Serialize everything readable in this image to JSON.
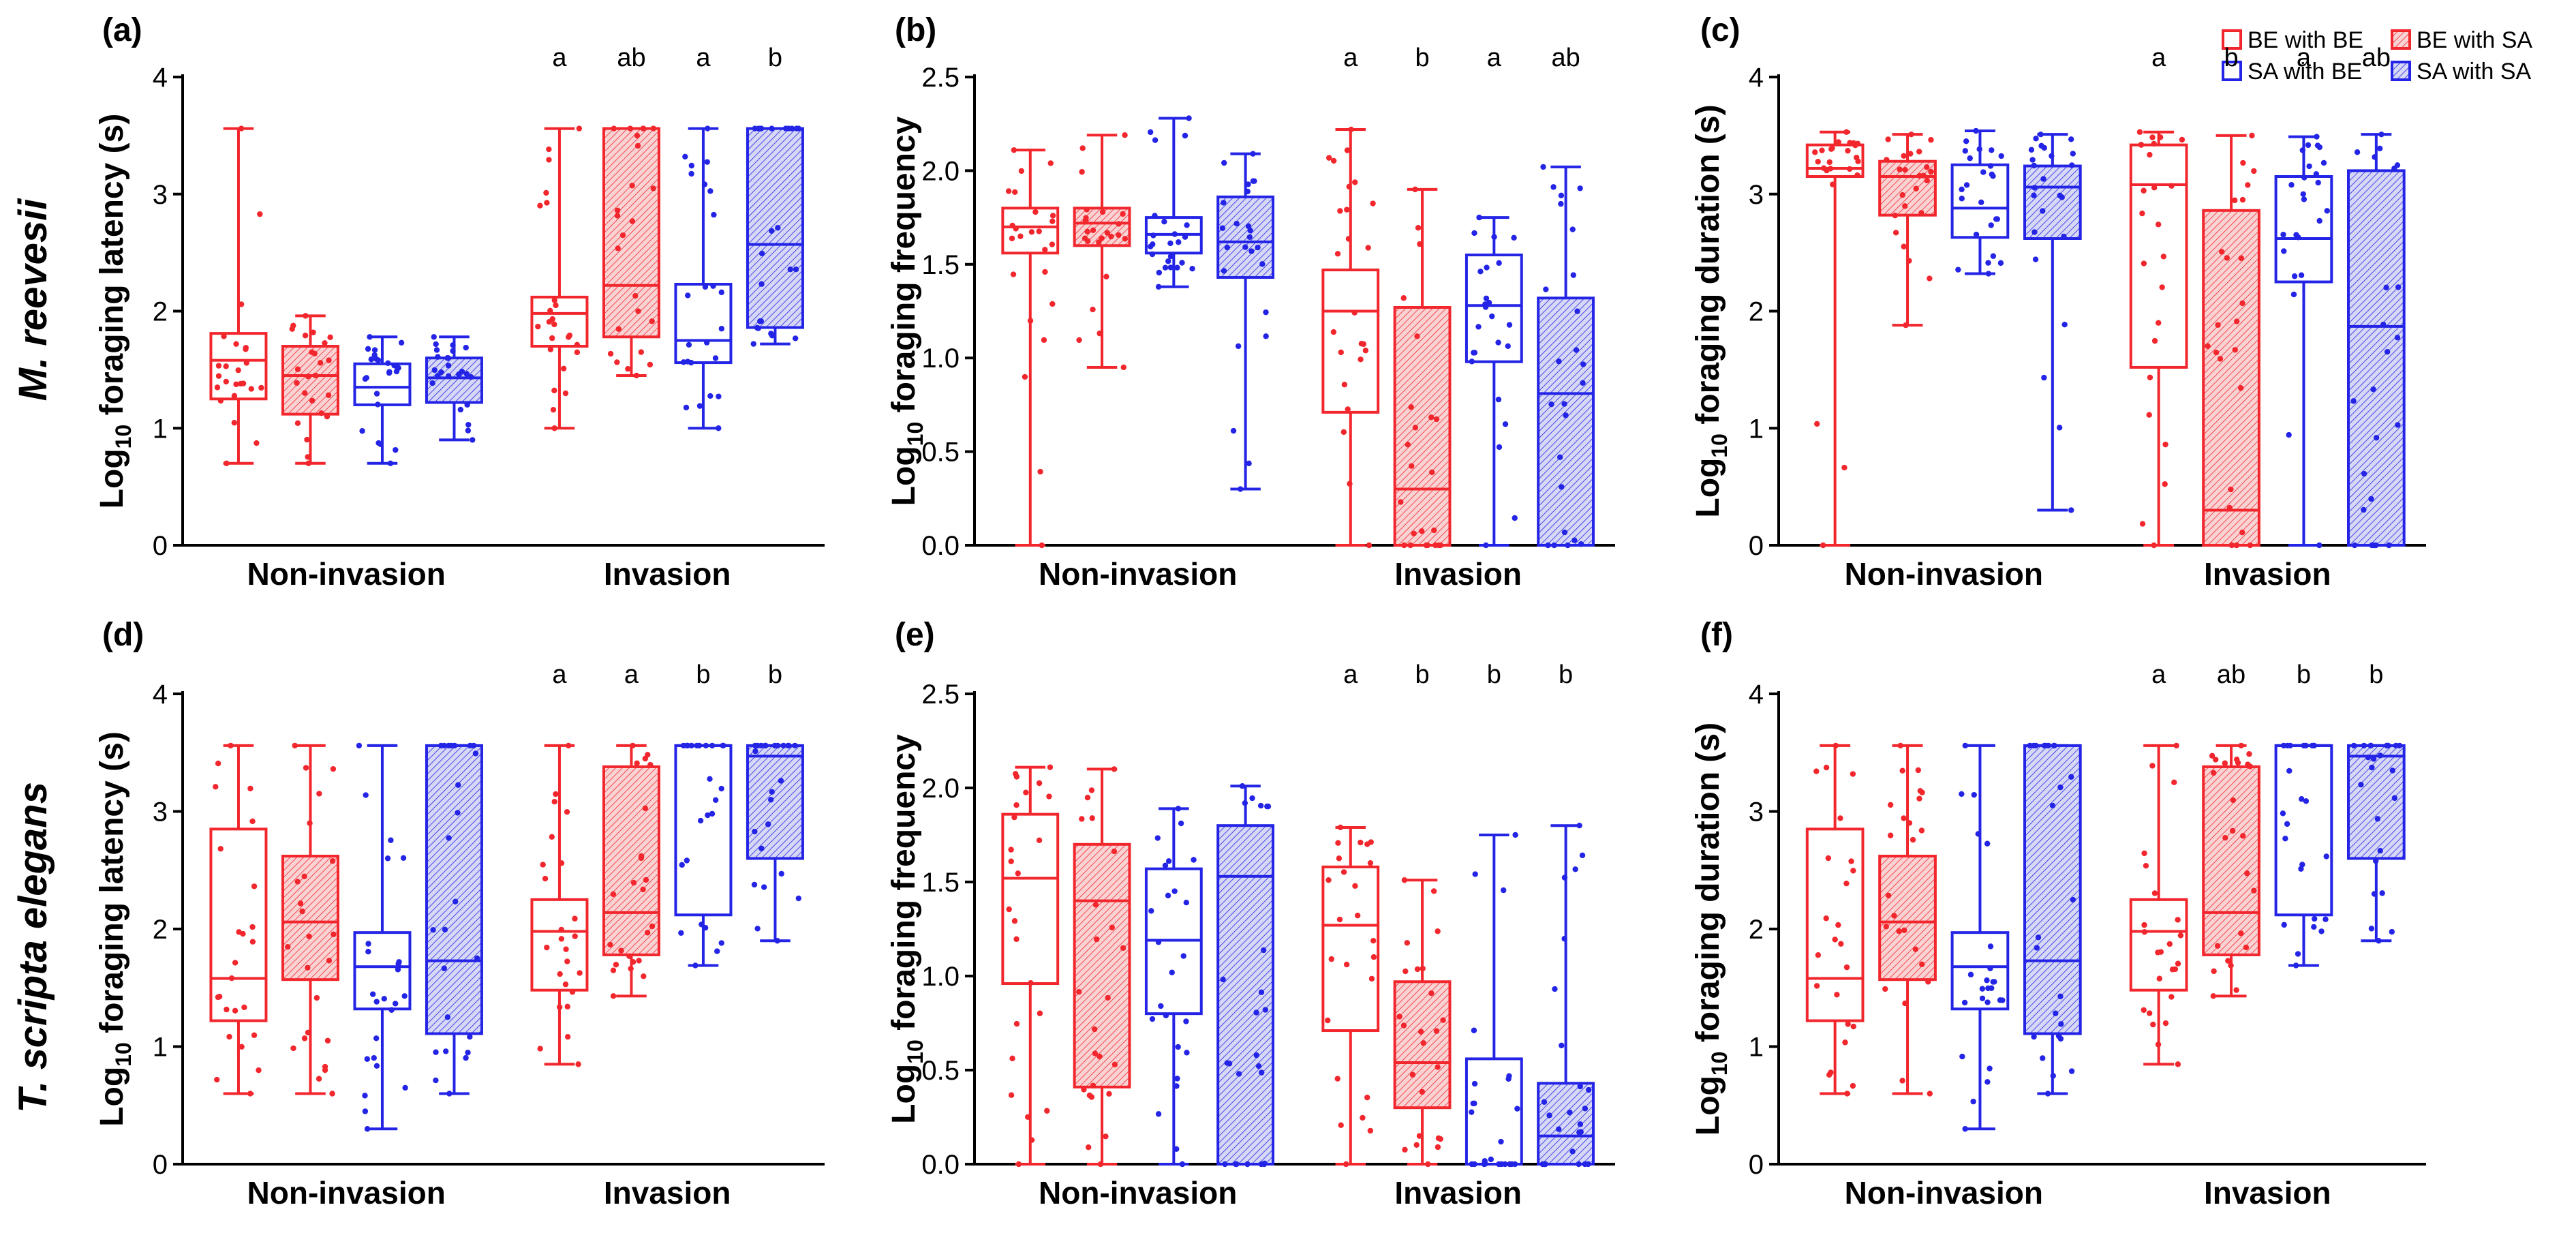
{
  "colors": {
    "red": "#f2262d",
    "blue": "#2424e6",
    "red_fill": "#f6b9bb",
    "blue_fill": "#bcbff0"
  },
  "legend": {
    "be_be": "BE with BE",
    "be_sa": "BE with SA",
    "sa_be": "SA with BE",
    "sa_sa": "SA with SA"
  },
  "rows": [
    {
      "label": "M. reevesii"
    },
    {
      "label": "T. scripta elegans"
    }
  ],
  "chart_data": [
    {
      "panel": "(a)",
      "type": "box",
      "title": "",
      "ylabel_pre": "Log",
      "ylabel_sub": "10",
      "ylabel_post": " foraging latency (s)",
      "ylim": [
        0,
        4
      ],
      "yticks": [
        "0",
        "1",
        "2",
        "3",
        "4"
      ],
      "ytick_values": [
        0,
        1,
        2,
        3,
        4
      ],
      "categories": [
        "Non-invasion",
        "Invasion"
      ],
      "series": [
        "BE with BE",
        "BE with SA",
        "SA with BE",
        "SA with SA"
      ],
      "groups": [
        {
          "category": "Non-invasion",
          "boxes": [
            {
              "series": "BE with BE",
              "min": 0.7,
              "q1": 1.25,
              "median": 1.58,
              "q3": 1.81,
              "max": 3.56,
              "letter": ""
            },
            {
              "series": "BE with SA",
              "min": 0.7,
              "q1": 1.12,
              "median": 1.45,
              "q3": 1.7,
              "max": 1.96,
              "letter": ""
            },
            {
              "series": "SA with BE",
              "min": 0.7,
              "q1": 1.2,
              "median": 1.35,
              "q3": 1.55,
              "max": 1.78,
              "letter": ""
            },
            {
              "series": "SA with SA",
              "min": 0.9,
              "q1": 1.22,
              "median": 1.43,
              "q3": 1.6,
              "max": 1.78,
              "letter": ""
            }
          ]
        },
        {
          "category": "Invasion",
          "boxes": [
            {
              "series": "BE with BE",
              "min": 1.0,
              "q1": 1.7,
              "median": 1.98,
              "q3": 2.12,
              "max": 3.56,
              "letter": "a"
            },
            {
              "series": "BE with SA",
              "min": 1.45,
              "q1": 1.78,
              "median": 2.22,
              "q3": 3.56,
              "max": 3.56,
              "letter": "ab"
            },
            {
              "series": "SA with BE",
              "min": 1.0,
              "q1": 1.56,
              "median": 1.75,
              "q3": 2.23,
              "max": 3.56,
              "letter": "a"
            },
            {
              "series": "SA with SA",
              "min": 1.72,
              "q1": 1.86,
              "median": 2.57,
              "q3": 3.56,
              "max": 3.56,
              "letter": "b"
            }
          ]
        }
      ]
    },
    {
      "panel": "(b)",
      "type": "box",
      "title": "",
      "ylabel_pre": "Log",
      "ylabel_sub": "10",
      "ylabel_post": " foraging frequency",
      "ylim": [
        0,
        2.5
      ],
      "yticks": [
        "0.0",
        "0.5",
        "1.0",
        "1.5",
        "2.0",
        "2.5"
      ],
      "ytick_values": [
        0,
        0.5,
        1.0,
        1.5,
        2.0,
        2.5
      ],
      "categories": [
        "Non-invasion",
        "Invasion"
      ],
      "series": [
        "BE with BE",
        "BE with SA",
        "SA with BE",
        "SA with SA"
      ],
      "groups": [
        {
          "category": "Non-invasion",
          "boxes": [
            {
              "series": "BE with BE",
              "min": 0.0,
              "q1": 1.56,
              "median": 1.7,
              "q3": 1.8,
              "max": 2.11,
              "letter": ""
            },
            {
              "series": "BE with SA",
              "min": 0.95,
              "q1": 1.6,
              "median": 1.72,
              "q3": 1.8,
              "max": 2.19,
              "letter": ""
            },
            {
              "series": "SA with BE",
              "min": 1.38,
              "q1": 1.56,
              "median": 1.66,
              "q3": 1.75,
              "max": 2.28,
              "letter": ""
            },
            {
              "series": "SA with SA",
              "min": 0.3,
              "q1": 1.43,
              "median": 1.62,
              "q3": 1.86,
              "max": 2.09,
              "letter": ""
            }
          ]
        },
        {
          "category": "Invasion",
          "boxes": [
            {
              "series": "BE with BE",
              "min": 0.0,
              "q1": 0.71,
              "median": 1.25,
              "q3": 1.47,
              "max": 2.22,
              "letter": "a"
            },
            {
              "series": "BE with SA",
              "min": 0.0,
              "q1": 0.0,
              "median": 0.3,
              "q3": 1.27,
              "max": 1.9,
              "letter": "b"
            },
            {
              "series": "SA with BE",
              "min": 0.0,
              "q1": 0.98,
              "median": 1.28,
              "q3": 1.55,
              "max": 1.75,
              "letter": "a"
            },
            {
              "series": "SA with SA",
              "min": 0.0,
              "q1": 0.0,
              "median": 0.81,
              "q3": 1.32,
              "max": 2.02,
              "letter": "ab"
            }
          ]
        }
      ]
    },
    {
      "panel": "(c)",
      "type": "box",
      "title": "",
      "ylabel_pre": "Log",
      "ylabel_sub": "10",
      "ylabel_post": " foraging duration (s)",
      "ylim": [
        0,
        4
      ],
      "yticks": [
        "0",
        "1",
        "2",
        "3",
        "4"
      ],
      "ytick_values": [
        0,
        1,
        2,
        3,
        4
      ],
      "categories": [
        "Non-invasion",
        "Invasion"
      ],
      "series": [
        "BE with BE",
        "BE with SA",
        "SA with BE",
        "SA with SA"
      ],
      "groups": [
        {
          "category": "Non-invasion",
          "boxes": [
            {
              "series": "BE with BE",
              "min": 0.0,
              "q1": 3.15,
              "median": 3.22,
              "q3": 3.42,
              "max": 3.53,
              "letter": ""
            },
            {
              "series": "BE with SA",
              "min": 1.88,
              "q1": 2.82,
              "median": 3.15,
              "q3": 3.28,
              "max": 3.51,
              "letter": ""
            },
            {
              "series": "SA with BE",
              "min": 2.32,
              "q1": 2.63,
              "median": 2.88,
              "q3": 3.25,
              "max": 3.54,
              "letter": ""
            },
            {
              "series": "SA with SA",
              "min": 0.3,
              "q1": 2.62,
              "median": 3.06,
              "q3": 3.24,
              "max": 3.51,
              "letter": ""
            }
          ]
        },
        {
          "category": "Invasion",
          "boxes": [
            {
              "series": "BE with BE",
              "min": 0.0,
              "q1": 1.52,
              "median": 3.08,
              "q3": 3.42,
              "max": 3.53,
              "letter": "a"
            },
            {
              "series": "BE with SA",
              "min": 0.0,
              "q1": 0.0,
              "median": 0.3,
              "q3": 2.86,
              "max": 3.5,
              "letter": "b"
            },
            {
              "series": "SA with BE",
              "min": 0.0,
              "q1": 2.25,
              "median": 2.62,
              "q3": 3.15,
              "max": 3.49,
              "letter": "a"
            },
            {
              "series": "SA with SA",
              "min": 0.0,
              "q1": 0.0,
              "median": 1.87,
              "q3": 3.2,
              "max": 3.51,
              "letter": "ab"
            }
          ]
        }
      ]
    },
    {
      "panel": "(d)",
      "type": "box",
      "title": "",
      "ylabel_pre": "Log",
      "ylabel_sub": "10",
      "ylabel_post": " foraging latency (s)",
      "ylim": [
        0,
        4
      ],
      "yticks": [
        "0",
        "1",
        "2",
        "3",
        "4"
      ],
      "ytick_values": [
        0,
        1,
        2,
        3,
        4
      ],
      "categories": [
        "Non-invasion",
        "Invasion"
      ],
      "series": [
        "BE with BE",
        "BE with SA",
        "SA with BE",
        "SA with SA"
      ],
      "groups": [
        {
          "category": "Non-invasion",
          "boxes": [
            {
              "series": "BE with BE",
              "min": 0.6,
              "q1": 1.22,
              "median": 1.58,
              "q3": 2.85,
              "max": 3.56,
              "letter": ""
            },
            {
              "series": "BE with SA",
              "min": 0.6,
              "q1": 1.57,
              "median": 2.06,
              "q3": 2.62,
              "max": 3.56,
              "letter": ""
            },
            {
              "series": "SA with BE",
              "min": 0.3,
              "q1": 1.32,
              "median": 1.68,
              "q3": 1.97,
              "max": 3.56,
              "letter": ""
            },
            {
              "series": "SA with SA",
              "min": 0.6,
              "q1": 1.11,
              "median": 1.73,
              "q3": 3.56,
              "max": 3.56,
              "letter": ""
            }
          ]
        },
        {
          "category": "Invasion",
          "boxes": [
            {
              "series": "BE with BE",
              "min": 0.85,
              "q1": 1.48,
              "median": 1.98,
              "q3": 2.25,
              "max": 3.56,
              "letter": "a"
            },
            {
              "series": "BE with SA",
              "min": 1.43,
              "q1": 1.78,
              "median": 2.14,
              "q3": 3.38,
              "max": 3.56,
              "letter": "a"
            },
            {
              "series": "SA with BE",
              "min": 1.69,
              "q1": 2.12,
              "median": 3.56,
              "q3": 3.56,
              "max": 3.56,
              "letter": "b"
            },
            {
              "series": "SA with SA",
              "min": 1.9,
              "q1": 2.6,
              "median": 3.47,
              "q3": 3.56,
              "max": 3.56,
              "letter": "b"
            }
          ]
        }
      ]
    },
    {
      "panel": "(e)",
      "type": "box",
      "title": "",
      "ylabel_pre": "Log",
      "ylabel_sub": "10",
      "ylabel_post": " foraging frequency",
      "ylim": [
        0,
        2.5
      ],
      "yticks": [
        "0.0",
        "0.5",
        "1.0",
        "1.5",
        "2.0",
        "2.5"
      ],
      "ytick_values": [
        0,
        0.5,
        1.0,
        1.5,
        2.0,
        2.5
      ],
      "categories": [
        "Non-invasion",
        "Invasion"
      ],
      "series": [
        "BE with BE",
        "BE with SA",
        "SA with BE",
        "SA with SA"
      ],
      "groups": [
        {
          "category": "Non-invasion",
          "boxes": [
            {
              "series": "BE with BE",
              "min": 0.0,
              "q1": 0.96,
              "median": 1.52,
              "q3": 1.86,
              "max": 2.11,
              "letter": ""
            },
            {
              "series": "BE with SA",
              "min": 0.0,
              "q1": 0.41,
              "median": 1.4,
              "q3": 1.7,
              "max": 2.1,
              "letter": ""
            },
            {
              "series": "SA with BE",
              "min": 0.0,
              "q1": 0.8,
              "median": 1.19,
              "q3": 1.57,
              "max": 1.89,
              "letter": ""
            },
            {
              "series": "SA with SA",
              "min": 0.0,
              "q1": 0.0,
              "median": 1.53,
              "q3": 1.8,
              "max": 2.01,
              "letter": ""
            }
          ]
        },
        {
          "category": "Invasion",
          "boxes": [
            {
              "series": "BE with BE",
              "min": 0.0,
              "q1": 0.71,
              "median": 1.27,
              "q3": 1.58,
              "max": 1.79,
              "letter": "a"
            },
            {
              "series": "BE with SA",
              "min": 0.0,
              "q1": 0.3,
              "median": 0.54,
              "q3": 0.97,
              "max": 1.51,
              "letter": "b"
            },
            {
              "series": "SA with BE",
              "min": 0.0,
              "q1": 0.0,
              "median": 0.0,
              "q3": 0.56,
              "max": 1.75,
              "letter": "b"
            },
            {
              "series": "SA with SA",
              "min": 0.0,
              "q1": 0.0,
              "median": 0.15,
              "q3": 0.43,
              "max": 1.8,
              "letter": "b"
            }
          ]
        }
      ]
    },
    {
      "panel": "(f)",
      "type": "box",
      "title": "",
      "ylabel_pre": "Log",
      "ylabel_sub": "10",
      "ylabel_post": " foraging duration (s)",
      "ylim": [
        0,
        4
      ],
      "yticks": [
        "0",
        "1",
        "2",
        "3",
        "4"
      ],
      "ytick_values": [
        0,
        1,
        2,
        3,
        4
      ],
      "categories": [
        "Non-invasion",
        "Invasion"
      ],
      "series": [
        "BE with BE",
        "BE with SA",
        "SA with BE",
        "SA with SA"
      ],
      "groups": [
        {
          "category": "Non-invasion",
          "boxes": [
            {
              "series": "BE with BE",
              "min": 0.6,
              "q1": 1.22,
              "median": 1.58,
              "q3": 2.85,
              "max": 3.56,
              "letter": ""
            },
            {
              "series": "BE with SA",
              "min": 0.6,
              "q1": 1.57,
              "median": 2.06,
              "q3": 2.62,
              "max": 3.56,
              "letter": ""
            },
            {
              "series": "SA with BE",
              "min": 0.3,
              "q1": 1.32,
              "median": 1.68,
              "q3": 1.97,
              "max": 3.56,
              "letter": ""
            },
            {
              "series": "SA with SA",
              "min": 0.6,
              "q1": 1.11,
              "median": 1.73,
              "q3": 3.56,
              "max": 3.56,
              "letter": ""
            }
          ]
        },
        {
          "category": "Invasion",
          "boxes": [
            {
              "series": "BE with BE",
              "min": 0.85,
              "q1": 1.48,
              "median": 1.98,
              "q3": 2.25,
              "max": 3.56,
              "letter": "a"
            },
            {
              "series": "BE with SA",
              "min": 1.43,
              "q1": 1.78,
              "median": 2.14,
              "q3": 3.38,
              "max": 3.56,
              "letter": "ab"
            },
            {
              "series": "SA with BE",
              "min": 1.69,
              "q1": 2.12,
              "median": 3.56,
              "q3": 3.56,
              "max": 3.56,
              "letter": "b"
            },
            {
              "series": "SA with SA",
              "min": 1.9,
              "q1": 2.6,
              "median": 3.47,
              "q3": 3.56,
              "max": 3.56,
              "letter": "b"
            }
          ]
        }
      ]
    }
  ]
}
